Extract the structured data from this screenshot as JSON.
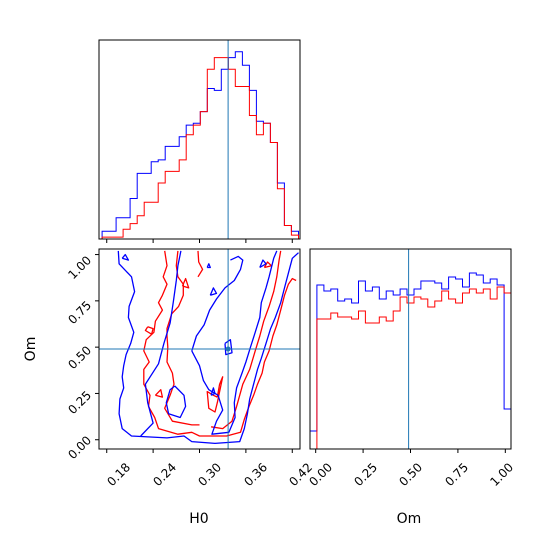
{
  "chart_data": {
    "type": "corner",
    "parameters": [
      "H0",
      "Om"
    ],
    "truth": {
      "H0": 0.337,
      "Om": 0.49
    },
    "axes": {
      "H0": {
        "label": "H0",
        "lim": [
          0.17,
          0.43
        ],
        "ticks": [
          0.18,
          0.24,
          0.3,
          0.36,
          0.42
        ],
        "tick_labels": [
          "0.18",
          "0.24",
          "0.30",
          "0.36",
          "0.42"
        ]
      },
      "Om": {
        "label": "Om",
        "lim": [
          -0.05,
          1.03
        ],
        "ticks": [
          0.0,
          0.25,
          0.5,
          0.75,
          1.0
        ],
        "tick_labels": [
          "0.00",
          "0.25",
          "0.50",
          "0.75",
          "1.00"
        ],
        "hist_lim": [
          -0.03,
          1.03
        ]
      }
    },
    "series": [
      {
        "color": "#0000ff",
        "H0_hist": [
          0.04,
          0.04,
          0.11,
          0.11,
          0.21,
          0.34,
          0.34,
          0.4,
          0.41,
          0.48,
          0.48,
          0.53,
          0.59,
          0.6,
          0.66,
          0.78,
          0.77,
          0.88,
          0.94,
          0.97,
          0.9,
          0.77,
          0.61,
          0.6,
          0.5,
          0.29,
          0.07,
          0.04
        ],
        "Om_hist": [
          0.09,
          0.82,
          0.79,
          0.8,
          0.74,
          0.75,
          0.73,
          0.84,
          0.79,
          0.81,
          0.75,
          0.79,
          0.77,
          0.8,
          0.77,
          0.8,
          0.84,
          0.84,
          0.83,
          0.8,
          0.86,
          0.85,
          0.81,
          0.88,
          0.87,
          0.83,
          0.85,
          0.82,
          0.2
        ]
      },
      {
        "color": "#ff0000",
        "H0_hist": [
          0.01,
          0.01,
          0.01,
          0.05,
          0.08,
          0.12,
          0.19,
          0.19,
          0.29,
          0.35,
          0.35,
          0.41,
          0.54,
          0.59,
          0.66,
          0.88,
          0.94,
          0.94,
          0.88,
          0.79,
          0.79,
          0.64,
          0.54,
          0.6,
          0.5,
          0.26,
          0.07,
          0.02
        ],
        "Om_hist": [
          0.0,
          0.65,
          0.65,
          0.68,
          0.66,
          0.66,
          0.65,
          0.69,
          0.63,
          0.63,
          0.66,
          0.64,
          0.69,
          0.76,
          0.73,
          0.76,
          0.75,
          0.71,
          0.74,
          0.79,
          0.75,
          0.73,
          0.78,
          0.8,
          0.78,
          0.8,
          0.75,
          0.81,
          0.78
        ]
      }
    ],
    "contours": [
      {
        "color": "#ff0000",
        "paths": [
          [
            [
              0.255,
              1.02
            ],
            [
              0.258,
              0.94
            ],
            [
              0.253,
              0.88
            ],
            [
              0.258,
              0.84
            ],
            [
              0.252,
              0.78
            ],
            [
              0.247,
              0.74
            ],
            [
              0.252,
              0.7
            ],
            [
              0.243,
              0.64
            ],
            [
              0.241,
              0.58
            ],
            [
              0.231,
              0.54
            ],
            [
              0.228,
              0.48
            ],
            [
              0.235,
              0.42
            ],
            [
              0.228,
              0.38
            ],
            [
              0.228,
              0.3
            ],
            [
              0.236,
              0.24
            ],
            [
              0.234,
              0.18
            ],
            [
              0.242,
              0.12
            ],
            [
              0.247,
              0.06
            ],
            [
              0.272,
              0.03
            ],
            [
              0.29,
              0.04
            ],
            [
              0.3,
              0.02
            ],
            [
              0.335,
              0.02
            ],
            [
              0.353,
              0.04
            ],
            [
              0.358,
              0.11
            ],
            [
              0.364,
              0.18
            ],
            [
              0.37,
              0.24
            ],
            [
              0.375,
              0.3
            ],
            [
              0.381,
              0.36
            ],
            [
              0.384,
              0.42
            ],
            [
              0.39,
              0.48
            ],
            [
              0.395,
              0.56
            ],
            [
              0.4,
              0.62
            ],
            [
              0.405,
              0.7
            ],
            [
              0.41,
              0.78
            ],
            [
              0.415,
              0.84
            ],
            [
              0.42,
              0.87
            ],
            [
              0.425,
              0.86
            ]
          ],
          [
            [
              0.272,
              1.02
            ],
            [
              0.27,
              0.94
            ],
            [
              0.272,
              0.88
            ],
            [
              0.279,
              0.84
            ],
            [
              0.279,
              0.78
            ],
            [
              0.273,
              0.72
            ],
            [
              0.264,
              0.68
            ],
            [
              0.258,
              0.6
            ],
            [
              0.258,
              0.56
            ],
            [
              0.259,
              0.5
            ],
            [
              0.258,
              0.42
            ],
            [
              0.265,
              0.36
            ],
            [
              0.267,
              0.3
            ],
            [
              0.262,
              0.24
            ],
            [
              0.255,
              0.17
            ],
            [
              0.265,
              0.1
            ],
            [
              0.29,
              0.08
            ],
            [
              0.3,
              0.08
            ]
          ],
          [
            [
              0.298,
              1.02
            ],
            [
              0.299,
              0.96
            ],
            [
              0.304,
              0.92
            ],
            [
              0.298,
              0.88
            ]
          ],
          [
            [
              0.315,
              0.07
            ],
            [
              0.33,
              0.06
            ],
            [
              0.342,
              0.1
            ],
            [
              0.348,
              0.18
            ],
            [
              0.352,
              0.24
            ],
            [
              0.356,
              0.3
            ],
            [
              0.365,
              0.38
            ],
            [
              0.372,
              0.48
            ],
            [
              0.378,
              0.56
            ],
            [
              0.383,
              0.64
            ],
            [
              0.39,
              0.72
            ],
            [
              0.396,
              0.8
            ],
            [
              0.4,
              0.88
            ],
            [
              0.403,
              0.97
            ],
            [
              0.405,
              1.02
            ]
          ],
          [
            [
              0.323,
              0.23
            ],
            [
              0.326,
              0.3
            ],
            [
              0.33,
              0.34
            ],
            [
              0.323,
              0.2
            ],
            [
              0.32,
              0.15
            ],
            [
              0.312,
              0.17
            ],
            [
              0.31,
              0.26
            ],
            [
              0.318,
              0.24
            ],
            [
              0.323,
              0.23
            ]
          ],
          [
            [
              0.278,
              0.83
            ],
            [
              0.282,
              0.87
            ],
            [
              0.286,
              0.82
            ],
            [
              0.278,
              0.83
            ]
          ],
          [
            [
              0.233,
              0.61
            ],
            [
              0.24,
              0.6
            ],
            [
              0.238,
              0.57
            ],
            [
              0.23,
              0.59
            ],
            [
              0.233,
              0.61
            ]
          ],
          [
            [
              0.243,
              0.24
            ],
            [
              0.25,
              0.27
            ],
            [
              0.252,
              0.23
            ],
            [
              0.243,
              0.24
            ]
          ],
          [
            [
              0.384,
              0.93
            ],
            [
              0.388,
              0.96
            ],
            [
              0.393,
              0.94
            ],
            [
              0.384,
              0.93
            ]
          ]
        ]
      },
      {
        "color": "#0000ff",
        "paths": [
          [
            [
              0.195,
              1.02
            ],
            [
              0.196,
              0.95
            ],
            [
              0.212,
              0.88
            ],
            [
              0.216,
              0.8
            ],
            [
              0.209,
              0.72
            ],
            [
              0.208,
              0.66
            ],
            [
              0.215,
              0.58
            ],
            [
              0.211,
              0.52
            ],
            [
              0.205,
              0.46
            ],
            [
              0.202,
              0.4
            ],
            [
              0.2,
              0.34
            ],
            [
              0.202,
              0.28
            ],
            [
              0.197,
              0.22
            ],
            [
              0.196,
              0.14
            ],
            [
              0.2,
              0.06
            ],
            [
              0.212,
              0.02
            ],
            [
              0.258,
              0.01
            ],
            [
              0.28,
              0.02
            ],
            [
              0.29,
              -0.01
            ],
            [
              0.32,
              -0.02
            ],
            [
              0.352,
              -0.01
            ],
            [
              0.358,
              0.06
            ],
            [
              0.362,
              0.14
            ],
            [
              0.365,
              0.22
            ],
            [
              0.37,
              0.3
            ],
            [
              0.375,
              0.38
            ],
            [
              0.38,
              0.44
            ],
            [
              0.386,
              0.52
            ],
            [
              0.392,
              0.6
            ],
            [
              0.398,
              0.66
            ],
            [
              0.405,
              0.74
            ],
            [
              0.41,
              0.82
            ],
            [
              0.415,
              0.9
            ],
            [
              0.42,
              0.98
            ],
            [
              0.428,
              1.01
            ]
          ],
          [
            [
              0.2,
              0.98
            ],
            [
              0.204,
              1.0
            ],
            [
              0.208,
              0.97
            ],
            [
              0.2,
              0.98
            ]
          ],
          [
            [
              0.224,
              0.02
            ],
            [
              0.24,
              0.09
            ],
            [
              0.233,
              0.2
            ],
            [
              0.23,
              0.3
            ],
            [
              0.247,
              0.41
            ],
            [
              0.254,
              0.52
            ],
            [
              0.262,
              0.63
            ],
            [
              0.266,
              0.74
            ],
            [
              0.27,
              0.86
            ],
            [
              0.272,
              0.94
            ],
            [
              0.276,
              1.02
            ]
          ],
          [
            [
              0.268,
              0.29
            ],
            [
              0.28,
              0.24
            ],
            [
              0.282,
              0.18
            ],
            [
              0.275,
              0.12
            ],
            [
              0.26,
              0.14
            ],
            [
              0.257,
              0.2
            ],
            [
              0.262,
              0.27
            ],
            [
              0.268,
              0.29
            ]
          ],
          [
            [
              0.29,
              0.48
            ],
            [
              0.3,
              0.4
            ],
            [
              0.305,
              0.32
            ],
            [
              0.312,
              0.27
            ],
            [
              0.324,
              0.24
            ],
            [
              0.33,
              0.16
            ],
            [
              0.322,
              0.1
            ],
            [
              0.316,
              0.03
            ],
            [
              0.338,
              0.04
            ],
            [
              0.346,
              0.12
            ],
            [
              0.345,
              0.2
            ],
            [
              0.348,
              0.28
            ],
            [
              0.355,
              0.36
            ],
            [
              0.36,
              0.42
            ],
            [
              0.366,
              0.5
            ],
            [
              0.372,
              0.58
            ],
            [
              0.378,
              0.66
            ],
            [
              0.38,
              0.74
            ],
            [
              0.386,
              0.82
            ],
            [
              0.39,
              0.88
            ],
            [
              0.396,
              0.98
            ],
            [
              0.4,
              1.02
            ]
          ],
          [
            [
              0.29,
              0.48
            ],
            [
              0.296,
              0.56
            ],
            [
              0.306,
              0.62
            ],
            [
              0.313,
              0.7
            ],
            [
              0.322,
              0.76
            ],
            [
              0.333,
              0.82
            ],
            [
              0.345,
              0.86
            ],
            [
              0.353,
              0.92
            ],
            [
              0.356,
              0.97
            ],
            [
              0.35,
              0.99
            ],
            [
              0.34,
              0.97
            ]
          ],
          [
            [
              0.314,
              0.78
            ],
            [
              0.318,
              0.82
            ],
            [
              0.322,
              0.79
            ],
            [
              0.314,
              0.78
            ]
          ],
          [
            [
              0.31,
              0.93
            ],
            [
              0.312,
              0.95
            ],
            [
              0.314,
              0.93
            ],
            [
              0.31,
              0.93
            ]
          ],
          [
            [
              0.333,
              0.52
            ],
            [
              0.34,
              0.54
            ],
            [
              0.342,
              0.47
            ],
            [
              0.334,
              0.46
            ],
            [
              0.333,
              0.52
            ]
          ],
          [
            [
              0.378,
              0.93
            ],
            [
              0.382,
              0.97
            ],
            [
              0.386,
              0.95
            ],
            [
              0.378,
              0.93
            ]
          ],
          [
            [
              0.315,
              0.24
            ],
            [
              0.318,
              0.28
            ],
            [
              0.32,
              0.25
            ],
            [
              0.315,
              0.24
            ]
          ]
        ]
      }
    ]
  }
}
